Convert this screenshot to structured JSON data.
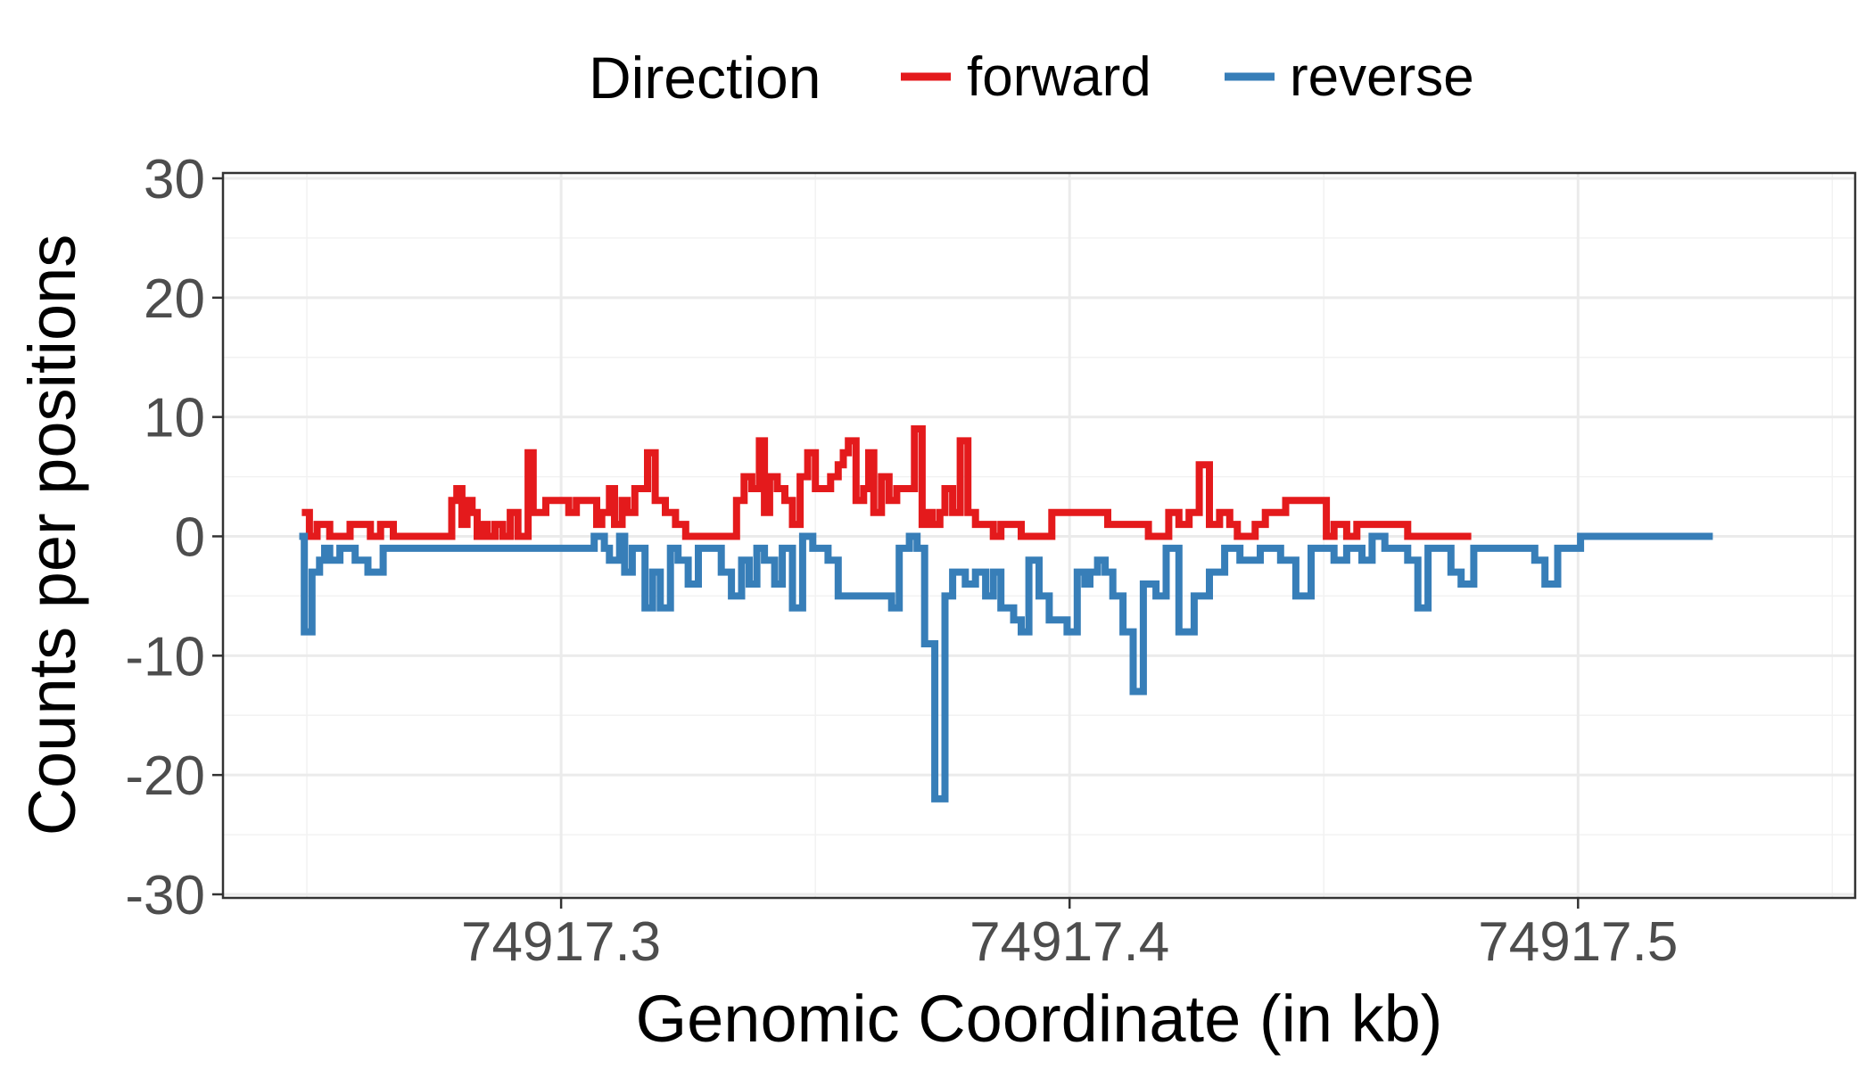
{
  "chart_data": {
    "type": "line",
    "step": true,
    "xlabel": "Genomic Coordinate (in kb)",
    "ylabel": "Counts per positions",
    "xlim": [
      74917.2335,
      74917.5545
    ],
    "ylim": [
      -30,
      30
    ],
    "x_ticks": [
      74917.3,
      74917.4,
      74917.5
    ],
    "x_tick_labels": [
      "74917.3",
      "74917.4",
      "74917.5"
    ],
    "y_ticks": [
      -30,
      -20,
      -10,
      0,
      10,
      20,
      30
    ],
    "y_tick_labels": [
      "-30",
      "-20",
      "-10",
      "0",
      "10",
      "20",
      "30"
    ],
    "grid": true,
    "legend": {
      "title": "Direction",
      "placement": "top",
      "entries": [
        "forward",
        "reverse"
      ]
    },
    "series": [
      {
        "name": "forward",
        "color": "#E41A1C",
        "x": [
          74917.249,
          74917.2505,
          74917.252,
          74917.2545,
          74917.256,
          74917.2585,
          74917.26,
          74917.2625,
          74917.2645,
          74917.267,
          74917.2725,
          74917.2785,
          74917.2795,
          74917.2805,
          74917.2815,
          74917.2825,
          74917.2835,
          74917.2845,
          74917.2855,
          74917.287,
          74917.2885,
          74917.29,
          74917.2915,
          74917.2935,
          74917.2945,
          74917.297,
          74917.2985,
          74917.3,
          74917.3015,
          74917.303,
          74917.307,
          74917.308,
          74917.3095,
          74917.3105,
          74917.312,
          74917.313,
          74917.3145,
          74917.317,
          74917.3185,
          74917.3205,
          74917.3225,
          74917.3245,
          74917.3255,
          74917.3345,
          74917.336,
          74917.3375,
          74917.339,
          74917.34,
          74917.341,
          74917.3425,
          74917.344,
          74917.3455,
          74917.347,
          74917.3485,
          74917.35,
          74917.3515,
          74917.353,
          74917.3545,
          74917.3555,
          74917.3565,
          74917.358,
          74917.3595,
          74917.3605,
          74917.3615,
          74917.363,
          74917.3645,
          74917.366,
          74917.3675,
          74917.3685,
          74917.3695,
          74917.371,
          74917.372,
          74917.373,
          74917.3745,
          74917.3755,
          74917.377,
          74917.3785,
          74917.38,
          74917.3815,
          74917.3825,
          74917.385,
          74917.3865,
          74917.3905,
          74917.3965,
          74917.4075,
          74917.4155,
          74917.4175,
          74917.4195,
          74917.4215,
          74917.4235,
          74917.4255,
          74917.4275,
          74917.4295,
          74917.4315,
          74917.433,
          74917.435,
          74917.4365,
          74917.4385,
          74917.44,
          74917.4425,
          74917.4445,
          74917.4485,
          74917.4505,
          74917.452,
          74917.4545,
          74917.4565,
          74917.46,
          74917.4665,
          74917.4715,
          74917.4765,
          74917.479
        ],
        "y": [
          2,
          0,
          1,
          0,
          0,
          1,
          1,
          0,
          1,
          0,
          0,
          3,
          4,
          1,
          3,
          2,
          0,
          1,
          0,
          1,
          0,
          2,
          0,
          7,
          2,
          3,
          3,
          3,
          2,
          3,
          1,
          2,
          4,
          1,
          3,
          2,
          4,
          7,
          3,
          2,
          1,
          0,
          0,
          3,
          5,
          4,
          8,
          2,
          5,
          4,
          3,
          1,
          5,
          7,
          4,
          4,
          5,
          6,
          7,
          8,
          3,
          4,
          7,
          2,
          5,
          3,
          4,
          4,
          4,
          9,
          1,
          2,
          1,
          2,
          4,
          2,
          8,
          2,
          1,
          1,
          0,
          1,
          0,
          2,
          1,
          0,
          0,
          2,
          1,
          2,
          6,
          1,
          2,
          1,
          0,
          0,
          1,
          2,
          2,
          3,
          3,
          3,
          0,
          1,
          0,
          1,
          1,
          0,
          0,
          0,
          0
        ]
      },
      {
        "name": "reverse",
        "color": "#377EB8",
        "x": [
          74917.2485,
          74917.2495,
          74917.251,
          74917.2525,
          74917.2535,
          74917.2545,
          74917.2565,
          74917.2595,
          74917.262,
          74917.265,
          74917.3065,
          74917.3085,
          74917.3095,
          74917.3115,
          74917.3125,
          74917.314,
          74917.3165,
          74917.318,
          74917.3195,
          74917.3215,
          74917.323,
          74917.325,
          74917.327,
          74917.3295,
          74917.3315,
          74917.3335,
          74917.3355,
          74917.337,
          74917.3385,
          74917.34,
          74917.342,
          74917.3435,
          74917.3455,
          74917.3475,
          74917.3495,
          74917.351,
          74917.3525,
          74917.3545,
          74917.365,
          74917.3665,
          74917.3685,
          74917.37,
          74917.3715,
          74917.3735,
          74917.3755,
          74917.377,
          74917.3795,
          74917.3815,
          74917.3835,
          74917.385,
          74917.3865,
          74917.389,
          74917.3905,
          74917.392,
          74917.394,
          74917.396,
          74917.3995,
          74917.4015,
          74917.403,
          74917.404,
          74917.4055,
          74917.407,
          74917.4085,
          74917.4105,
          74917.4125,
          74917.4145,
          74917.417,
          74917.419,
          74917.4215,
          74917.4245,
          74917.4275,
          74917.4305,
          74917.4335,
          74917.4375,
          74917.4415,
          74917.4445,
          74917.4475,
          74917.452,
          74917.4545,
          74917.4575,
          74917.4595,
          74917.462,
          74917.4645,
          74917.4665,
          74917.4685,
          74917.4705,
          74917.4725,
          74917.475,
          74917.477,
          74917.4795,
          74917.481,
          74917.4835,
          74917.4855,
          74917.4875,
          74917.4895,
          74917.4915,
          74917.4935,
          74917.496,
          74917.498,
          74917.5005,
          74917.5045,
          74917.5055,
          74917.5265
        ],
        "y": [
          0,
          -8,
          -3,
          -2,
          -1,
          -2,
          -1,
          -2,
          -3,
          -1,
          0,
          -1,
          -2,
          0,
          -3,
          -1,
          -6,
          -3,
          -6,
          -1,
          -2,
          -4,
          -1,
          -1,
          -3,
          -5,
          -2,
          -4,
          -1,
          -2,
          -4,
          -1,
          -6,
          0,
          -1,
          -1,
          -2,
          -5,
          -6,
          -1,
          0,
          -1,
          -9,
          -22,
          -5,
          -3,
          -4,
          -3,
          -5,
          -3,
          -6,
          -7,
          -8,
          -2,
          -5,
          -7,
          -8,
          -3,
          -4,
          -3,
          -2,
          -3,
          -5,
          -8,
          -13,
          -4,
          -5,
          -1,
          -8,
          -5,
          -3,
          -1,
          -2,
          -1,
          -2,
          -5,
          -1,
          -2,
          -1,
          -2,
          0,
          -1,
          -1,
          -2,
          -6,
          -1,
          -1,
          -3,
          -4,
          -1,
          -1,
          -1,
          -1,
          -1,
          -1,
          -2,
          -4,
          -1,
          -1,
          0,
          0,
          0,
          0
        ]
      }
    ]
  }
}
